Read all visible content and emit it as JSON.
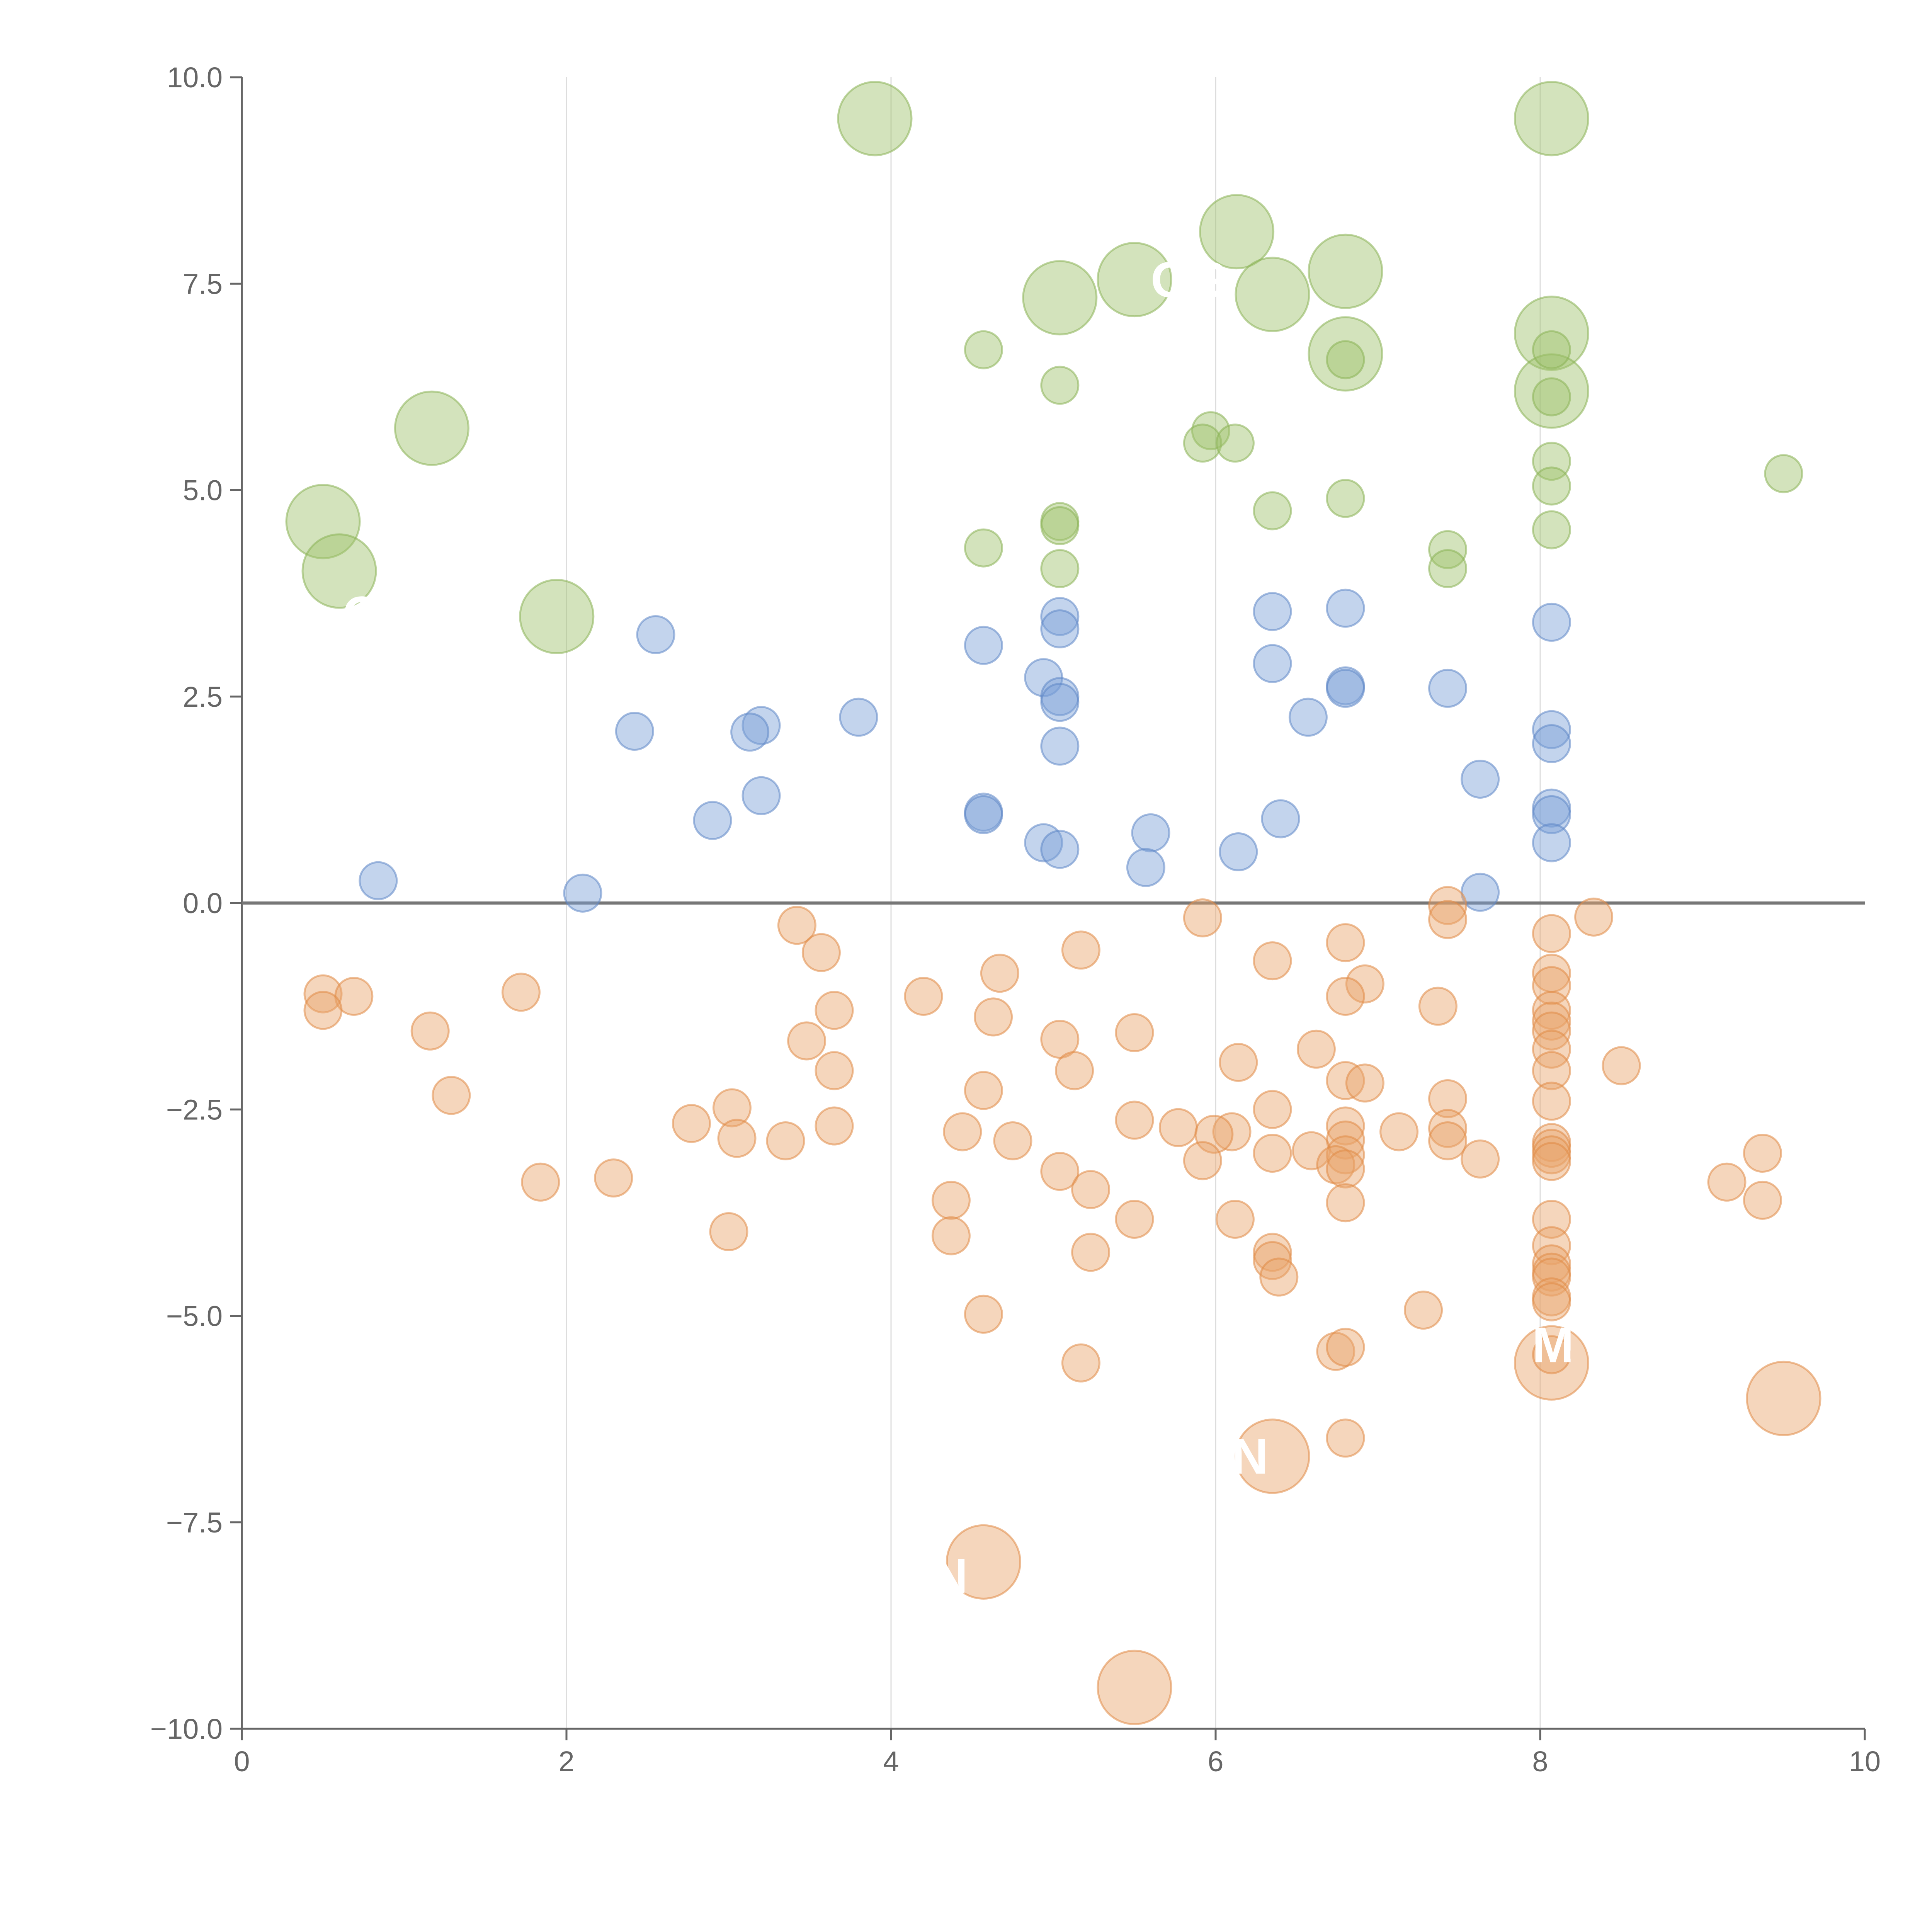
{
  "chart_data": {
    "type": "scatter",
    "title": "",
    "xlabel": "",
    "ylabel": "",
    "xlim": [
      0,
      10
    ],
    "ylim": [
      -10,
      10
    ],
    "xticks": [
      "0",
      "2",
      "4",
      "6",
      "8",
      "10"
    ],
    "yticks": [
      "−10.0",
      "−7.5",
      "−5.0",
      "−2.5",
      "0.0",
      "2.5",
      "5.0",
      "7.5",
      "10.0"
    ],
    "grid": "vertical lines at x = 2, 4, 6, 8",
    "zero_line": true,
    "colors": {
      "green": "#9dc26b",
      "blue": "#7a9fd6",
      "orange": "#e8a36a"
    },
    "series": [
      {
        "color": "green",
        "points": [
          [
            3.9,
            9.5
          ],
          [
            8.07,
            9.5
          ],
          [
            6.13,
            8.13
          ],
          [
            6.8,
            7.65
          ],
          [
            5.5,
            7.55
          ],
          [
            6.35,
            7.37
          ],
          [
            5.04,
            7.33
          ],
          [
            8.07,
            6.9
          ],
          [
            6.8,
            6.65
          ],
          [
            8.07,
            6.2
          ],
          [
            1.17,
            5.75
          ],
          [
            0.5,
            4.62
          ],
          [
            0.6,
            4.02
          ],
          [
            1.94,
            3.47
          ],
          [
            4.57,
            6.7
          ],
          [
            8.07,
            6.7
          ],
          [
            5.04,
            6.27
          ],
          [
            6.8,
            6.58
          ],
          [
            8.07,
            6.13
          ],
          [
            5.97,
            5.72
          ],
          [
            5.92,
            5.57
          ],
          [
            6.12,
            5.57
          ],
          [
            8.07,
            5.35
          ],
          [
            9.5,
            5.2
          ],
          [
            8.07,
            5.05
          ],
          [
            6.8,
            4.9
          ],
          [
            6.35,
            4.75
          ],
          [
            5.04,
            4.62
          ],
          [
            5.04,
            4.57
          ],
          [
            8.07,
            4.52
          ],
          [
            4.57,
            4.3
          ],
          [
            7.43,
            4.28
          ],
          [
            5.04,
            4.05
          ],
          [
            7.43,
            4.05
          ]
        ],
        "sizes": [
          3,
          3,
          3,
          3,
          3,
          3,
          3,
          3,
          3,
          3,
          3,
          3,
          3,
          3,
          1,
          1,
          1,
          1,
          1,
          1,
          1,
          1,
          1,
          1,
          1,
          1,
          1,
          1,
          1,
          1,
          1,
          1,
          1,
          1
        ]
      },
      {
        "color": "blue",
        "points": [
          [
            6.8,
            3.57
          ],
          [
            6.35,
            3.53
          ],
          [
            5.04,
            3.47
          ],
          [
            8.07,
            3.4
          ],
          [
            5.04,
            3.32
          ],
          [
            2.55,
            3.25
          ],
          [
            4.57,
            3.12
          ],
          [
            6.35,
            2.9
          ],
          [
            4.94,
            2.73
          ],
          [
            6.8,
            2.63
          ],
          [
            6.8,
            2.6
          ],
          [
            7.43,
            2.6
          ],
          [
            5.04,
            2.5
          ],
          [
            5.04,
            2.43
          ],
          [
            3.8,
            2.25
          ],
          [
            6.57,
            2.25
          ],
          [
            3.2,
            2.15
          ],
          [
            8.07,
            2.1
          ],
          [
            2.42,
            2.08
          ],
          [
            3.13,
            2.07
          ],
          [
            8.07,
            1.93
          ],
          [
            5.04,
            1.9
          ],
          [
            7.63,
            1.5
          ],
          [
            3.2,
            1.3
          ],
          [
            8.07,
            1.15
          ],
          [
            4.57,
            1.1
          ],
          [
            4.57,
            1.07
          ],
          [
            8.07,
            1.07
          ],
          [
            6.4,
            1.02
          ],
          [
            2.9,
            1.0
          ],
          [
            5.6,
            0.85
          ],
          [
            4.94,
            0.73
          ],
          [
            8.07,
            0.73
          ],
          [
            5.04,
            0.65
          ],
          [
            6.14,
            0.62
          ],
          [
            5.57,
            0.43
          ],
          [
            0.84,
            0.27
          ],
          [
            7.63,
            0.13
          ],
          [
            2.1,
            0.12
          ]
        ],
        "sizes": [
          1,
          1,
          1,
          1,
          1,
          1,
          1,
          1,
          1,
          1,
          1,
          1,
          1,
          1,
          1,
          1,
          1,
          1,
          1,
          1,
          1,
          1,
          1,
          1,
          1,
          1,
          1,
          1,
          1,
          1,
          1,
          1,
          1,
          1,
          1,
          1,
          1,
          1,
          1
        ]
      },
      {
        "color": "orange",
        "points": [
          [
            8.07,
            -5.57
          ],
          [
            9.5,
            -6.0
          ],
          [
            6.35,
            -6.7
          ],
          [
            4.57,
            -7.98
          ],
          [
            5.5,
            -9.5
          ],
          [
            7.43,
            -0.03
          ],
          [
            8.33,
            -0.17
          ],
          [
            5.92,
            -0.18
          ],
          [
            7.43,
            -0.2
          ],
          [
            3.42,
            -0.27
          ],
          [
            8.07,
            -0.37
          ],
          [
            6.8,
            -0.48
          ],
          [
            5.17,
            -0.57
          ],
          [
            3.57,
            -0.6
          ],
          [
            6.35,
            -0.7
          ],
          [
            8.07,
            -0.85
          ],
          [
            4.67,
            -0.85
          ],
          [
            8.07,
            -1.0
          ],
          [
            6.92,
            -0.98
          ],
          [
            0.5,
            -1.1
          ],
          [
            0.69,
            -1.13
          ],
          [
            1.72,
            -1.08
          ],
          [
            4.2,
            -1.13
          ],
          [
            6.8,
            -1.13
          ],
          [
            0.5,
            -1.3
          ],
          [
            7.37,
            -1.25
          ],
          [
            3.65,
            -1.3
          ],
          [
            8.07,
            -1.3
          ],
          [
            4.63,
            -1.38
          ],
          [
            8.07,
            -1.43
          ],
          [
            1.16,
            -1.55
          ],
          [
            5.5,
            -1.57
          ],
          [
            8.07,
            -1.55
          ],
          [
            3.48,
            -1.67
          ],
          [
            5.04,
            -1.65
          ],
          [
            6.62,
            -1.77
          ],
          [
            8.07,
            -1.77
          ],
          [
            6.14,
            -1.93
          ],
          [
            8.5,
            -1.97
          ],
          [
            3.65,
            -2.03
          ],
          [
            5.13,
            -2.03
          ],
          [
            8.07,
            -2.03
          ],
          [
            6.8,
            -2.15
          ],
          [
            6.92,
            -2.18
          ],
          [
            4.57,
            -2.27
          ],
          [
            1.29,
            -2.33
          ],
          [
            7.43,
            -2.37
          ],
          [
            8.07,
            -2.4
          ],
          [
            3.02,
            -2.48
          ],
          [
            6.35,
            -2.5
          ],
          [
            5.5,
            -2.63
          ],
          [
            2.77,
            -2.67
          ],
          [
            3.65,
            -2.7
          ],
          [
            5.77,
            -2.72
          ],
          [
            6.8,
            -2.7
          ],
          [
            7.43,
            -2.73
          ],
          [
            4.44,
            -2.77
          ],
          [
            6.1,
            -2.77
          ],
          [
            5.99,
            -2.8
          ],
          [
            7.13,
            -2.77
          ],
          [
            3.05,
            -2.85
          ],
          [
            4.75,
            -2.88
          ],
          [
            3.35,
            -2.88
          ],
          [
            6.8,
            -2.87
          ],
          [
            7.43,
            -2.88
          ],
          [
            8.07,
            -2.9
          ],
          [
            8.07,
            -2.97
          ],
          [
            6.59,
            -3.0
          ],
          [
            6.35,
            -3.03
          ],
          [
            9.37,
            -3.03
          ],
          [
            8.07,
            -3.05
          ],
          [
            6.8,
            -3.05
          ],
          [
            7.63,
            -3.1
          ],
          [
            5.92,
            -3.12
          ],
          [
            8.07,
            -3.13
          ],
          [
            6.74,
            -3.17
          ],
          [
            6.8,
            -3.22
          ],
          [
            5.04,
            -3.25
          ],
          [
            2.29,
            -3.33
          ],
          [
            9.15,
            -3.38
          ],
          [
            1.84,
            -3.38
          ],
          [
            5.23,
            -3.47
          ],
          [
            4.37,
            -3.6
          ],
          [
            9.37,
            -3.6
          ],
          [
            6.8,
            -3.63
          ],
          [
            6.12,
            -3.83
          ],
          [
            5.5,
            -3.83
          ],
          [
            8.07,
            -3.83
          ],
          [
            3.0,
            -3.98
          ],
          [
            4.37,
            -4.03
          ],
          [
            8.07,
            -4.15
          ],
          [
            5.23,
            -4.23
          ],
          [
            6.35,
            -4.23
          ],
          [
            6.35,
            -4.33
          ],
          [
            8.07,
            -4.37
          ],
          [
            8.07,
            -4.47
          ],
          [
            6.39,
            -4.53
          ],
          [
            8.07,
            -4.53
          ],
          [
            8.07,
            -4.77
          ],
          [
            8.07,
            -4.83
          ],
          [
            7.28,
            -4.93
          ],
          [
            4.57,
            -4.98
          ],
          [
            6.74,
            -5.43
          ],
          [
            6.8,
            -5.38
          ],
          [
            8.07,
            -5.47
          ],
          [
            5.17,
            -5.57
          ],
          [
            6.8,
            -6.48
          ]
        ],
        "sizes": [
          3,
          3,
          3,
          3,
          3,
          1,
          1,
          1,
          1,
          1,
          1,
          1,
          1,
          1,
          1,
          1,
          1,
          1,
          1,
          1,
          1,
          1,
          1,
          1,
          1,
          1,
          1,
          1,
          1,
          1,
          1,
          1,
          1,
          1,
          1,
          1,
          1,
          1,
          1,
          1,
          1,
          1,
          1,
          1,
          1,
          1,
          1,
          1,
          1,
          1,
          1,
          1,
          1,
          1,
          1,
          1,
          1,
          1,
          1,
          1,
          1,
          1,
          1,
          1,
          1,
          1,
          1,
          1,
          1,
          1,
          1,
          1,
          1,
          1,
          1,
          1,
          1,
          1,
          1,
          1,
          1,
          1,
          1,
          1,
          1,
          1,
          1,
          1,
          1,
          1,
          1,
          1,
          1,
          1,
          1,
          1,
          1,
          1,
          1,
          1,
          1,
          1,
          1,
          1,
          1,
          1,
          1,
          1,
          1,
          1,
          1,
          1
        ]
      }
    ],
    "point_labels": [
      {
        "text": "OG",
        "x": 5.6,
        "y": 7.55
      },
      {
        "text": "O",
        "x": 0.62,
        "y": 3.5
      },
      {
        "text": "M",
        "x": 7.95,
        "y": -5.35
      },
      {
        "text": "N",
        "x": 6.1,
        "y": -6.7
      },
      {
        "text": "N",
        "x": 4.25,
        "y": -8.15
      }
    ]
  }
}
